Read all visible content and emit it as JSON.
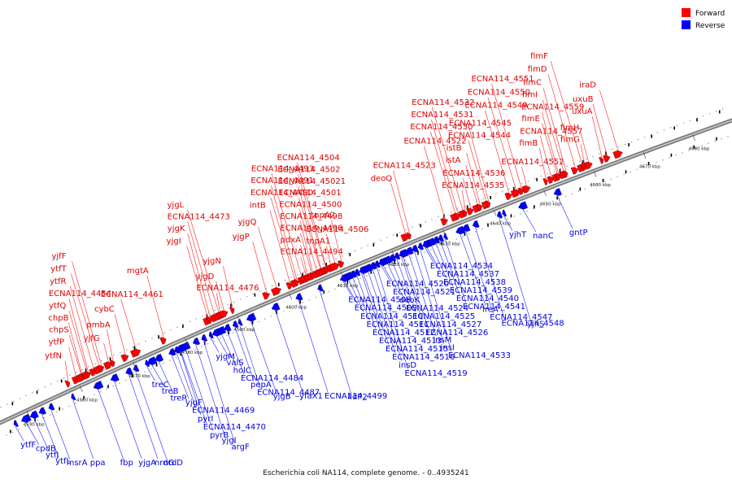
{
  "caption": "Escherichia coli NA114, complete genome. - 0..4935241",
  "legend": [
    {
      "label": "Forward",
      "color": "#ff0000"
    },
    {
      "label": "Reverse",
      "color": "#0000ff"
    }
  ],
  "colors": {
    "forward": "#ff0000",
    "reverse": "#0000ff",
    "backbone": "#888888"
  },
  "ticks": [
    "4550 kbp",
    "4560 kbp",
    "4570 kbp",
    "4580 kbp",
    "4590 kbp",
    "4600 kbp",
    "4610 kbp",
    "4620 kbp",
    "4630 kbp",
    "4640 kbp",
    "4650 kbp",
    "4660 kbp",
    "4670 kbp",
    "4680 kbp"
  ],
  "forward_genes": [
    {
      "label": "ytfN",
      "pos": 4558.0
    },
    {
      "label": "ytfP",
      "pos": 4559.3
    },
    {
      "label": "chpS",
      "pos": 4560.0
    },
    {
      "label": "chpB",
      "pos": 4560.5
    },
    {
      "label": "ytfQ",
      "pos": 4561.2
    },
    {
      "label": "ECNA114_4454",
      "pos": 4561.8
    },
    {
      "label": "ytfR",
      "pos": 4562.6
    },
    {
      "label": "ytfT",
      "pos": 4563.4
    },
    {
      "label": "yjfF",
      "pos": 4564.2
    },
    {
      "label": "yjfG",
      "pos": 4565.3
    },
    {
      "label": "pmbA",
      "pos": 4566.5
    },
    {
      "label": "cybC",
      "pos": 4568.6
    },
    {
      "label": "ECNA114_4461",
      "pos": 4570.4
    },
    {
      "label": "mgtA",
      "pos": 4576.0
    },
    {
      "label": "yjgI",
      "pos": 4584.2
    },
    {
      "label": "yjgK",
      "pos": 4585.0
    },
    {
      "label": "ECNA114_4473",
      "pos": 4585.6
    },
    {
      "label": "yjgL",
      "pos": 4586.2
    },
    {
      "label": "ECNA114_4476",
      "pos": 4586.8
    },
    {
      "label": "yjgD",
      "pos": 4587.3
    },
    {
      "label": "yjgN",
      "pos": 4589.3
    },
    {
      "label": "yjgP",
      "pos": 4595.6
    },
    {
      "label": "yjgQ",
      "pos": 4597.3
    },
    {
      "label": "intB",
      "pos": 4600.2
    },
    {
      "label": "ECNA114_4490",
      "pos": 4601.0
    },
    {
      "label": "ECNA114_4491",
      "pos": 4601.7
    },
    {
      "label": "ECNA114_4493",
      "pos": 4602.4
    },
    {
      "label": "ECNA114_4494",
      "pos": 4603.0
    },
    {
      "label": "pdxA",
      "pos": 4603.6
    },
    {
      "label": "ECNA114_4496",
      "pos": 4604.2
    },
    {
      "label": "ECNA114_4498",
      "pos": 4604.8
    },
    {
      "label": "ECNA114_4500",
      "pos": 4605.3
    },
    {
      "label": "ECNA114_4501",
      "pos": 4605.8
    },
    {
      "label": "ECNA114_45021",
      "pos": 4606.3
    },
    {
      "label": "ECNA114_4502",
      "pos": 4606.9
    },
    {
      "label": "ECNA114_4504",
      "pos": 4607.4
    },
    {
      "label": "tnpA1",
      "pos": 4608.0
    },
    {
      "label": "ECNA114_4506",
      "pos": 4608.6
    },
    {
      "label": "tnpA2",
      "pos": 4610.2
    },
    {
      "label": "deoQ",
      "pos": 4622.5
    },
    {
      "label": "ECNA114_4523",
      "pos": 4623.6
    },
    {
      "label": "ECNA114_4522",
      "pos": 4630.3
    },
    {
      "label": "ECNA114_4530",
      "pos": 4632.2
    },
    {
      "label": "ECNA114_4531",
      "pos": 4633.0
    },
    {
      "label": "ECNA114_4532",
      "pos": 4633.8
    },
    {
      "label": "ECNA114_4535",
      "pos": 4634.6
    },
    {
      "label": "ECNA114_4536",
      "pos": 4635.4
    },
    {
      "label": "istA",
      "pos": 4636.6
    },
    {
      "label": "istB",
      "pos": 4637.4
    },
    {
      "label": "ECNA114_4544",
      "pos": 4638.4
    },
    {
      "label": "ECNA114_4545",
      "pos": 4639.2
    },
    {
      "label": "ECNA114_4549",
      "pos": 4643.0
    },
    {
      "label": "ECNA114_4550",
      "pos": 4644.2
    },
    {
      "label": "ECNA114_4551",
      "pos": 4645.6
    },
    {
      "label": "ECNA114_4552",
      "pos": 4646.4
    },
    {
      "label": "fimB",
      "pos": 4650.6
    },
    {
      "label": "ECNA114_4557",
      "pos": 4651.4
    },
    {
      "label": "fimE",
      "pos": 4652.4
    },
    {
      "label": "ECNA114_4559",
      "pos": 4653.0
    },
    {
      "label": "fimI",
      "pos": 4653.8
    },
    {
      "label": "fimC",
      "pos": 4654.6
    },
    {
      "label": "fimD",
      "pos": 4656.2
    },
    {
      "label": "fimF",
      "pos": 4657.4
    },
    {
      "label": "fimG",
      "pos": 4658.2
    },
    {
      "label": "fimH",
      "pos": 4658.8
    },
    {
      "label": "uxuA",
      "pos": 4661.8
    },
    {
      "label": "uxuB",
      "pos": 4662.6
    },
    {
      "label": "iraD",
      "pos": 4664.6
    }
  ],
  "reverse_genes": [
    {
      "label": "ytfF",
      "pos": 4547.6
    },
    {
      "label": "cpdB",
      "pos": 4550.0
    },
    {
      "label": "ytfJ",
      "pos": 4551.4
    },
    {
      "label": "ytfL",
      "pos": 4552.8
    },
    {
      "label": "msrA",
      "pos": 4554.4
    },
    {
      "label": "ppa",
      "pos": 4558.4
    },
    {
      "label": "fbp",
      "pos": 4563.6
    },
    {
      "label": "yjgA",
      "pos": 4566.6
    },
    {
      "label": "nrdG",
      "pos": 4569.2
    },
    {
      "label": "nrdD",
      "pos": 4570.4
    },
    {
      "label": "treC",
      "pos": 4572.4
    },
    {
      "label": "treB",
      "pos": 4573.8
    },
    {
      "label": "treR",
      "pos": 4575.0
    },
    {
      "label": "yjgF",
      "pos": 4577.4
    },
    {
      "label": "ECNA114_4469",
      "pos": 4578.2
    },
    {
      "label": "pyrI",
      "pos": 4578.8
    },
    {
      "label": "ECNA114_4470",
      "pos": 4579.4
    },
    {
      "label": "pyrB",
      "pos": 4580.2
    },
    {
      "label": "yjgI",
      "pos": 4582.0
    },
    {
      "label": "argF",
      "pos": 4583.4
    },
    {
      "label": "yjgM",
      "pos": 4584.6
    },
    {
      "label": "valS",
      "pos": 4586.2
    },
    {
      "label": "holC",
      "pos": 4587.0
    },
    {
      "label": "ECNA114_4484",
      "pos": 4588.0
    },
    {
      "label": "pepA",
      "pos": 4589.4
    },
    {
      "label": "ECNA114_4487",
      "pos": 4590.2
    },
    {
      "label": "yjgB",
      "pos": 4592.8
    },
    {
      "label": "yfaX1",
      "pos": 4597.4
    },
    {
      "label": "ECNA114_4499",
      "pos": 4601.8
    },
    {
      "label": "lldP2",
      "pos": 4605.8
    },
    {
      "label": "ECNA114_4508",
      "pos": 4610.2
    },
    {
      "label": "ECNA114_4509",
      "pos": 4610.9
    },
    {
      "label": "ECNA114_4510",
      "pos": 4611.6
    },
    {
      "label": "ECNA114_4511",
      "pos": 4612.3
    },
    {
      "label": "ECNA114_4512",
      "pos": 4613.0
    },
    {
      "label": "ECNA114_4513",
      "pos": 4613.8
    },
    {
      "label": "ECNA114_4515",
      "pos": 4614.6
    },
    {
      "label": "ECNA114_4516",
      "pos": 4615.4
    },
    {
      "label": "insD",
      "pos": 4616.2
    },
    {
      "label": "ECNA114_4519",
      "pos": 4616.9
    },
    {
      "label": "ECNA114_4520",
      "pos": 4617.6
    },
    {
      "label": "ECNA114_4521",
      "pos": 4618.4
    },
    {
      "label": "deoK",
      "pos": 4619.2
    },
    {
      "label": "ECNA114_4524",
      "pos": 4620.0
    },
    {
      "label": "ECNA114_4525",
      "pos": 4620.8
    },
    {
      "label": "ECNA114_4527",
      "pos": 4621.6
    },
    {
      "label": "ECNA114_4526",
      "pos": 4622.4
    },
    {
      "label": "insM",
      "pos": 4623.4
    },
    {
      "label": "insI",
      "pos": 4624.4
    },
    {
      "label": "ECNA114_4533",
      "pos": 4625.4
    },
    {
      "label": "ECNA114_4534",
      "pos": 4626.2
    },
    {
      "label": "ECNA114_4537",
      "pos": 4627.0
    },
    {
      "label": "ECNA114_4538",
      "pos": 4627.8
    },
    {
      "label": "ECNA114_4539",
      "pos": 4628.6
    },
    {
      "label": "ECNA114_4540",
      "pos": 4629.4
    },
    {
      "label": "ECNA114_4541",
      "pos": 4630.2
    },
    {
      "label": "ireA",
      "pos": 4633.6
    },
    {
      "label": "ECNA114_4547",
      "pos": 4634.6
    },
    {
      "label": "ECNA114_4548",
      "pos": 4636.4
    },
    {
      "label": "yjhS",
      "pos": 4641.0
    },
    {
      "label": "yjhT",
      "pos": 4641.8
    },
    {
      "label": "nanC",
      "pos": 4646.0
    },
    {
      "label": "gntP",
      "pos": 4652.8
    }
  ]
}
